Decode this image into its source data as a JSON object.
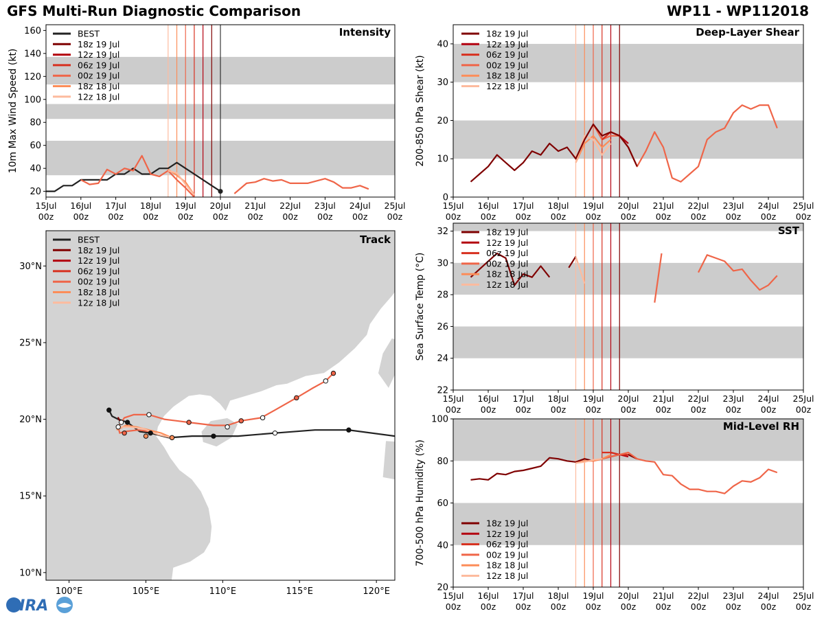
{
  "page": {
    "title_left": "GFS Multi-Run Diagnostic Comparison",
    "title_right": "WP11 - WP112018",
    "logo_text": "CIRA"
  },
  "colors": {
    "best": "#222222",
    "runs": [
      "#7f0000",
      "#b3000f",
      "#d7301f",
      "#ef6548",
      "#fc8d59",
      "#fdbb9e"
    ],
    "band": "#cccccc",
    "land": "#d3d3d3"
  },
  "runs": [
    "18z 19 Jul",
    "12z 19 Jul",
    "06z 19 Jul",
    "00z 19 Jul",
    "18z 18 Jul",
    "12z 18 Jul"
  ],
  "run_init_day": [
    19.75,
    19.5,
    19.25,
    19.0,
    18.75,
    18.5
  ],
  "time_ticks": {
    "days": [
      "15Jul",
      "16Jul",
      "17Jul",
      "18Jul",
      "19Jul",
      "20Jul",
      "21Jul",
      "22Jul",
      "23Jul",
      "24Jul",
      "25Jul"
    ],
    "hour": "00z"
  },
  "chart_data": [
    {
      "id": "intensity",
      "type": "line",
      "title": "Intensity",
      "ylabel": "10m Max Wind Speed (kt)",
      "xlim": [
        15,
        25
      ],
      "ylim": [
        15,
        165
      ],
      "yticks": [
        20,
        40,
        60,
        80,
        100,
        120,
        140,
        160
      ],
      "bands": [
        [
          34,
          64
        ],
        [
          83,
          96
        ],
        [
          113,
          137
        ]
      ],
      "legend": [
        "BEST",
        "18z 19 Jul",
        "12z 19 Jul",
        "06z 19 Jul",
        "00z 19 Jul",
        "18z 18 Jul",
        "12z 18 Jul"
      ],
      "series": [
        {
          "name": "BEST",
          "x": [
            15,
            15.25,
            15.5,
            15.75,
            16,
            16.25,
            16.5,
            16.75,
            17,
            17.25,
            17.5,
            17.75,
            18,
            18.25,
            18.5,
            18.75,
            19,
            19.25,
            19.5,
            19.75,
            20
          ],
          "y": [
            20,
            20,
            25,
            25,
            30,
            30,
            30,
            30,
            35,
            35,
            40,
            35,
            35,
            40,
            40,
            45,
            40,
            35,
            30,
            25,
            20
          ],
          "end_marker": true
        },
        {
          "name": "18z 19 Jul",
          "x": [],
          "y": []
        },
        {
          "name": "12z 19 Jul",
          "x": [],
          "y": []
        },
        {
          "name": "06z 19 Jul",
          "x": [],
          "y": []
        },
        {
          "name": "00z 19 Jul",
          "x": [
            16,
            16.25,
            16.5,
            16.75,
            17,
            17.25,
            17.5,
            17.75,
            18,
            18.25,
            18.5,
            18.75,
            19,
            19.25,
            null,
            20.4,
            20.75,
            21,
            21.25,
            21.5,
            21.75,
            22,
            22.25,
            22.5,
            22.75,
            23,
            23.25,
            23.5,
            23.75,
            24,
            24.25
          ],
          "y": [
            30,
            26,
            27,
            39,
            35,
            40,
            38,
            51,
            35,
            33,
            38,
            30,
            23,
            15,
            null,
            18,
            27,
            28,
            31,
            29,
            30,
            27,
            27,
            27,
            29,
            31,
            28,
            23,
            23,
            25,
            22
          ]
        },
        {
          "name": "18z 18 Jul",
          "x": [
            18.5,
            18.75,
            19,
            19.25
          ],
          "y": [
            39,
            34,
            28,
            17
          ]
        },
        {
          "name": "12z 18 Jul",
          "x": [
            18.5,
            18.75,
            19,
            19.25
          ],
          "y": [
            38,
            36,
            26,
            17
          ]
        }
      ]
    },
    {
      "id": "shear",
      "type": "line",
      "title": "Deep-Layer Shear",
      "ylabel": "200-850 hPa Shear (kt)",
      "xlim": [
        15,
        25
      ],
      "ylim": [
        0,
        45
      ],
      "yticks": [
        0,
        10,
        20,
        30,
        40
      ],
      "bands": [
        [
          10,
          20
        ],
        [
          30,
          40
        ]
      ],
      "legend": [
        "18z 19 Jul",
        "12z 19 Jul",
        "06z 19 Jul",
        "00z 19 Jul",
        "18z 18 Jul",
        "12z 18 Jul"
      ],
      "series": [
        {
          "name": "00z 19 Jul",
          "x": [
            19,
            19.25,
            19.5,
            19.75,
            20,
            20.25,
            20.5,
            20.75,
            21,
            21.25,
            21.5,
            21.75,
            22,
            22.25,
            22.5,
            22.75,
            23,
            23.25,
            23.5,
            23.75,
            24,
            24.25
          ],
          "y": [
            19,
            15,
            16,
            16,
            13,
            8,
            12,
            17,
            13,
            5,
            4,
            6,
            8,
            15,
            17,
            18,
            22,
            24,
            23,
            24,
            24,
            18
          ]
        },
        {
          "name": "18z 18 Jul",
          "x": [
            18.5,
            18.75,
            19,
            19.25,
            19.5
          ],
          "y": [
            9,
            14,
            16,
            13,
            15
          ]
        },
        {
          "name": "12z 18 Jul",
          "x": [
            18.5,
            18.75,
            19,
            19.25,
            19.5
          ],
          "y": [
            9,
            16,
            15,
            11,
            14
          ]
        },
        {
          "name": "06z 19 Jul",
          "x": [
            19.25,
            19.5,
            19.75
          ],
          "y": [
            15,
            17,
            16
          ]
        },
        {
          "name": "12z 19 Jul",
          "x": [
            19.5,
            19.75,
            20
          ],
          "y": [
            17,
            16,
            14
          ]
        },
        {
          "name": "18z 19 Jul",
          "x": [
            15.5,
            15.75,
            16,
            16.25,
            16.5,
            16.75,
            17,
            17.25,
            17.5,
            17.75,
            18,
            18.25,
            18.5,
            18.75,
            19,
            19.25,
            19.5,
            19.75,
            20,
            20.25
          ],
          "y": [
            4,
            6,
            8,
            11,
            9,
            7,
            9,
            12,
            11,
            14,
            12,
            13,
            10,
            15,
            19,
            16,
            17,
            16,
            13,
            8
          ]
        }
      ]
    },
    {
      "id": "sst",
      "type": "line",
      "title": "SST",
      "ylabel": "Sea Surface Temp (°C)",
      "xlim": [
        15,
        25
      ],
      "ylim": [
        22,
        32.5
      ],
      "yticks": [
        22,
        24,
        26,
        28,
        30,
        32
      ],
      "bands": [
        [
          24,
          26
        ],
        [
          28,
          30
        ],
        [
          32,
          34
        ]
      ],
      "legend": [
        "18z 19 Jul",
        "12z 19 Jul",
        "06z 19 Jul",
        "00z 19 Jul",
        "18z 18 Jul",
        "12z 18 Jul"
      ],
      "series": [
        {
          "name": "18z 19 Jul",
          "x": [
            15.5,
            15.75,
            16,
            16.25,
            16.5,
            16.75,
            17,
            17.25,
            17.5,
            17.75,
            null,
            18.3,
            18.5
          ],
          "y": [
            29.1,
            29.6,
            30.1,
            30.6,
            30.3,
            28.6,
            29.3,
            29.1,
            29.8,
            29.1,
            null,
            29.7,
            30.4
          ]
        },
        {
          "name": "00z 19 Jul",
          "x": [
            20.75,
            20.95,
            null,
            22,
            22.25,
            22.5,
            22.75,
            23,
            23.25,
            23.5,
            23.75,
            24,
            24.25
          ],
          "y": [
            27.5,
            30.6,
            null,
            29.4,
            30.5,
            30.3,
            30.1,
            29.5,
            29.6,
            28.9,
            28.3,
            28.6,
            29.2
          ]
        },
        {
          "name": "12z 18 Jul",
          "x": [
            18.5,
            18.75
          ],
          "y": [
            30.4,
            28.7
          ]
        }
      ]
    },
    {
      "id": "rh",
      "type": "line",
      "title": "Mid-Level RH",
      "ylabel": "700-500 hPa Humidity (%)",
      "xlim": [
        15,
        25
      ],
      "ylim": [
        20,
        100
      ],
      "yticks": [
        20,
        40,
        60,
        80,
        100
      ],
      "bands": [
        [
          40,
          60
        ],
        [
          80,
          100
        ]
      ],
      "legend": [
        "18z 19 Jul",
        "12z 19 Jul",
        "06z 19 Jul",
        "00z 19 Jul",
        "18z 18 Jul",
        "12z 18 Jul"
      ],
      "series": [
        {
          "name": "18z 19 Jul",
          "x": [
            15.5,
            15.75,
            16,
            16.25,
            16.5,
            16.75,
            17,
            17.25,
            17.5,
            17.75,
            18,
            18.25,
            18.5,
            18.75,
            19,
            19.25,
            19.5,
            19.75,
            20,
            20.25
          ],
          "y": [
            71,
            71.5,
            71,
            74,
            73.5,
            75,
            75.5,
            76.5,
            77.5,
            81.5,
            81,
            80,
            79.5,
            81,
            80,
            81,
            82,
            83,
            83,
            81
          ]
        },
        {
          "name": "12z 19 Jul",
          "x": [
            19.5,
            19.75,
            20
          ],
          "y": [
            84,
            83,
            82
          ]
        },
        {
          "name": "06z 19 Jul",
          "x": [
            19.25,
            19.5,
            19.75,
            20
          ],
          "y": [
            84,
            84,
            83,
            83
          ]
        },
        {
          "name": "00z 19 Jul",
          "x": [
            19,
            19.25,
            19.5,
            19.75,
            20,
            20.25,
            20.5,
            20.75,
            21,
            21.25,
            21.5,
            21.75,
            22,
            22.25,
            22.5,
            22.75,
            23,
            23.25,
            23.5,
            23.75,
            24,
            24.25
          ],
          "y": [
            80,
            81,
            82,
            83,
            84,
            81,
            80,
            79.5,
            73.5,
            73,
            69,
            66.5,
            66.5,
            65.5,
            65.5,
            64.5,
            68,
            70.5,
            70,
            72,
            76,
            74.5
          ]
        },
        {
          "name": "18z 18 Jul",
          "x": [
            18.5,
            18.75,
            19,
            19.25,
            19.5
          ],
          "y": [
            79,
            80,
            80,
            81,
            83
          ]
        },
        {
          "name": "12z 18 Jul",
          "x": [
            18.5,
            18.75,
            19,
            19.25
          ],
          "y": [
            79,
            79.5,
            80.5,
            81
          ]
        }
      ]
    },
    {
      "id": "track",
      "type": "scatter",
      "title": "Track",
      "xlim": [
        98.5,
        121.2
      ],
      "ylim": [
        9.5,
        32.3
      ],
      "xticks": [
        100,
        105,
        110,
        115,
        120
      ],
      "xtick_labels": [
        "100°E",
        "105°E",
        "110°E",
        "115°E",
        "120°E"
      ],
      "yticks": [
        10,
        15,
        20,
        25,
        30
      ],
      "ytick_labels": [
        "10°N",
        "15°N",
        "20°N",
        "25°N",
        "30°N"
      ],
      "legend": [
        "BEST",
        "18z 19 Jul",
        "12z 19 Jul",
        "06z 19 Jul",
        "00z 19 Jul",
        "18z 18 Jul",
        "12z 18 Jul"
      ],
      "series": [
        {
          "name": "BEST",
          "lon": [
            121.2,
            118.2,
            116,
            113.4,
            111,
            109.4,
            108,
            106.5,
            105.3,
            104.6,
            103.8,
            103.2,
            102.8,
            102.6
          ],
          "lat": [
            18.9,
            19.3,
            19.3,
            19.1,
            18.9,
            18.9,
            18.9,
            18.8,
            19.1,
            19.2,
            19.8,
            20.0,
            20.2,
            20.6
          ],
          "markers": [
            [
              118.2,
              19.3,
              "filled"
            ],
            [
              113.4,
              19.1,
              "open"
            ],
            [
              109.4,
              18.9,
              "filled"
            ],
            [
              105.3,
              19.1,
              "filled"
            ],
            [
              103.8,
              19.8,
              "filled"
            ],
            [
              102.6,
              20.6,
              "filled"
            ]
          ]
        },
        {
          "name": "00z 19 Jul",
          "lon": [
            117.2,
            116.7,
            115.8,
            114.8,
            113.4,
            112.5,
            111.2,
            110.3,
            109.4,
            107.8,
            106.2,
            105.2,
            104.2,
            103.6,
            103.2,
            103.3,
            103.6,
            104.5,
            105.3
          ],
          "lat": [
            23.0,
            22.5,
            22.0,
            21.4,
            20.6,
            20.1,
            19.9,
            19.6,
            19.6,
            19.8,
            20.0,
            20.3,
            20.3,
            20.1,
            19.5,
            19.1,
            19.2,
            19.3,
            19.2
          ],
          "markers": [
            [
              117.2,
              23.0,
              "filled"
            ],
            [
              116.7,
              22.5,
              "open"
            ],
            [
              114.8,
              21.4,
              "filled"
            ],
            [
              112.6,
              20.1,
              "open"
            ],
            [
              111.2,
              19.9,
              "filled"
            ],
            [
              110.3,
              19.5,
              "open"
            ],
            [
              107.8,
              19.8,
              "filled"
            ],
            [
              105.2,
              20.3,
              "open"
            ],
            [
              103.6,
              19.1,
              "filled"
            ]
          ]
        },
        {
          "name": "18z 18 Jul",
          "lon": [
            106.7,
            106,
            105.2,
            104.4,
            103.7,
            103.1
          ],
          "lat": [
            18.8,
            19.1,
            19.3,
            19.5,
            19.6,
            19.3
          ],
          "markers": [
            [
              106.7,
              18.8,
              "filled"
            ],
            [
              105.0,
              18.9,
              "filled"
            ]
          ]
        },
        {
          "name": "12z 18 Jul",
          "lon": [
            106.7,
            105.8,
            104.8,
            103.9,
            103.2
          ],
          "lat": [
            18.8,
            19.0,
            19.4,
            19.5,
            19.5
          ],
          "markers": [
            [
              103.2,
              19.5,
              "open"
            ]
          ]
        },
        {
          "name": "18z 19 Jul",
          "lon": [
            103.4,
            103.2,
            103.3
          ],
          "lat": [
            19.7,
            20.1,
            19.9
          ],
          "markers": [
            [
              103.4,
              19.8,
              "open"
            ]
          ]
        }
      ]
    }
  ]
}
